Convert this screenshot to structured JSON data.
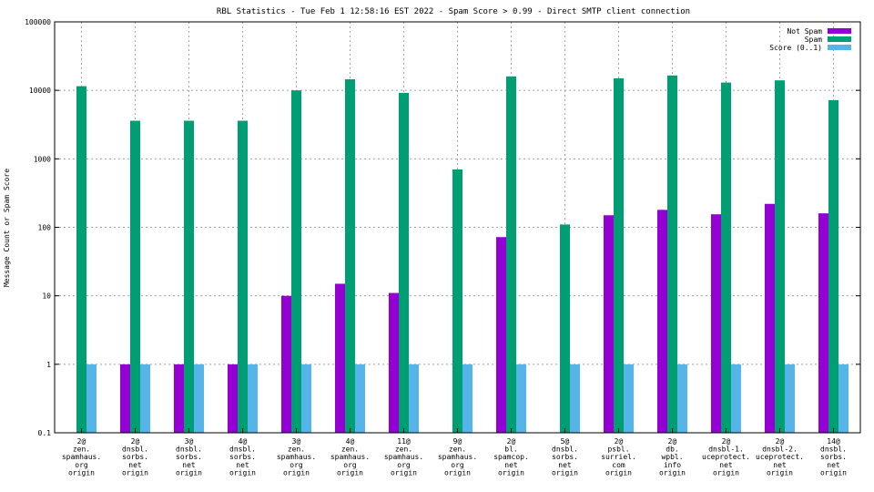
{
  "chart_data": {
    "type": "bar",
    "title": "RBL Statistics - Tue Feb  1 12:58:16 EST 2022 - Spam Score > 0.99 - Direct SMTP client connection",
    "ylabel": "Message Count or Spam Score",
    "xlabel": "",
    "yscale": "log",
    "ylim": [
      0.1,
      100000
    ],
    "yticks": [
      "0.1",
      "1",
      "10",
      "100",
      "1000",
      "10000",
      "100000"
    ],
    "grid": true,
    "legend_position": "top-right",
    "categories": [
      [
        "2@",
        "zen.",
        "spamhaus.",
        "org",
        "origin"
      ],
      [
        "2@",
        "dnsbl.",
        "sorbs.",
        "net",
        "origin"
      ],
      [
        "3@",
        "dnsbl.",
        "sorbs.",
        "net",
        "origin"
      ],
      [
        "4@",
        "dnsbl.",
        "sorbs.",
        "net",
        "origin"
      ],
      [
        "3@",
        "zen.",
        "spamhaus.",
        "org",
        "origin"
      ],
      [
        "4@",
        "zen.",
        "spamhaus.",
        "org",
        "origin"
      ],
      [
        "11@",
        "zen.",
        "spamhaus.",
        "org",
        "origin"
      ],
      [
        "9@",
        "zen.",
        "spamhaus.",
        "org",
        "origin"
      ],
      [
        "2@",
        "bl.",
        "spamcop.",
        "net",
        "origin"
      ],
      [
        "5@",
        "dnsbl.",
        "sorbs.",
        "net",
        "origin"
      ],
      [
        "2@",
        "psbl.",
        "surriel.",
        "com",
        "origin"
      ],
      [
        "2@",
        "db.",
        "wpbl.",
        "info",
        "origin"
      ],
      [
        "2@",
        "dnsbl-1.",
        "uceprotect.",
        "net",
        "origin"
      ],
      [
        "2@",
        "dnsbl-2.",
        "uceprotect.",
        "net",
        "origin"
      ],
      [
        "14@",
        "dnsbl.",
        "sorbs.",
        "net",
        "origin"
      ]
    ],
    "series": [
      {
        "name": "Not Spam",
        "color": "#9400d3",
        "values": [
          null,
          1,
          1,
          1,
          10,
          15,
          11,
          null,
          72,
          null,
          150,
          180,
          155,
          220,
          160
        ]
      },
      {
        "name": "Spam",
        "color": "#009e73",
        "values": [
          11500,
          3600,
          3600,
          3600,
          10000,
          14500,
          9200,
          700,
          16000,
          110,
          15000,
          16500,
          13000,
          14000,
          7200
        ]
      },
      {
        "name": "Score (0..1)",
        "color": "#56b4e9",
        "values": [
          1,
          1,
          1,
          1,
          1,
          1,
          1,
          1,
          1,
          1,
          1,
          1,
          1,
          1,
          1
        ]
      }
    ]
  }
}
